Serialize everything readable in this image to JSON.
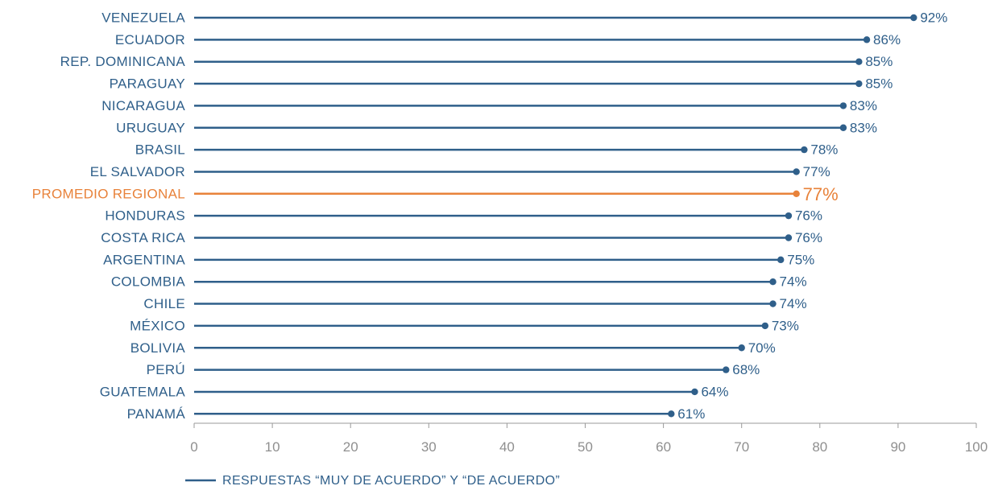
{
  "chart_data": {
    "type": "lollipop",
    "orientation": "horizontal",
    "categories": [
      "VENEZUELA",
      "ECUADOR",
      "REP. DOMINICANA",
      "PARAGUAY",
      "NICARAGUA",
      "URUGUAY",
      "BRASIL",
      "EL SALVADOR",
      "PROMEDIO REGIONAL",
      "HONDURAS",
      "COSTA RICA",
      "ARGENTINA",
      "COLOMBIA",
      "CHILE",
      "MÉXICO",
      "BOLIVIA",
      "PERÚ",
      "GUATEMALA",
      "PANAMÁ"
    ],
    "values": [
      92,
      86,
      85,
      85,
      83,
      83,
      78,
      77,
      77,
      76,
      76,
      75,
      74,
      74,
      73,
      70,
      68,
      64,
      61
    ],
    "value_labels": [
      "92%",
      "86%",
      "85%",
      "85%",
      "83%",
      "83%",
      "78%",
      "77%",
      "77%",
      "76%",
      "76%",
      "75%",
      "74%",
      "74%",
      "73%",
      "70%",
      "68%",
      "64%",
      "61%"
    ],
    "highlight_category": "PROMEDIO REGIONAL",
    "xlim": [
      0,
      100
    ],
    "x_ticks": [
      "0",
      "10",
      "20",
      "30",
      "40",
      "50",
      "60",
      "70",
      "80",
      "90",
      "100"
    ],
    "legend": {
      "placement": "bottom-left",
      "entries": [
        "RESPUESTAS “MUY DE ACUERDO” Y “DE ACUERDO”"
      ]
    },
    "grid": false,
    "colors": {
      "series": "#2f5f8a",
      "highlight": "#e8823a",
      "axis_text": "#8f8f8f"
    }
  }
}
